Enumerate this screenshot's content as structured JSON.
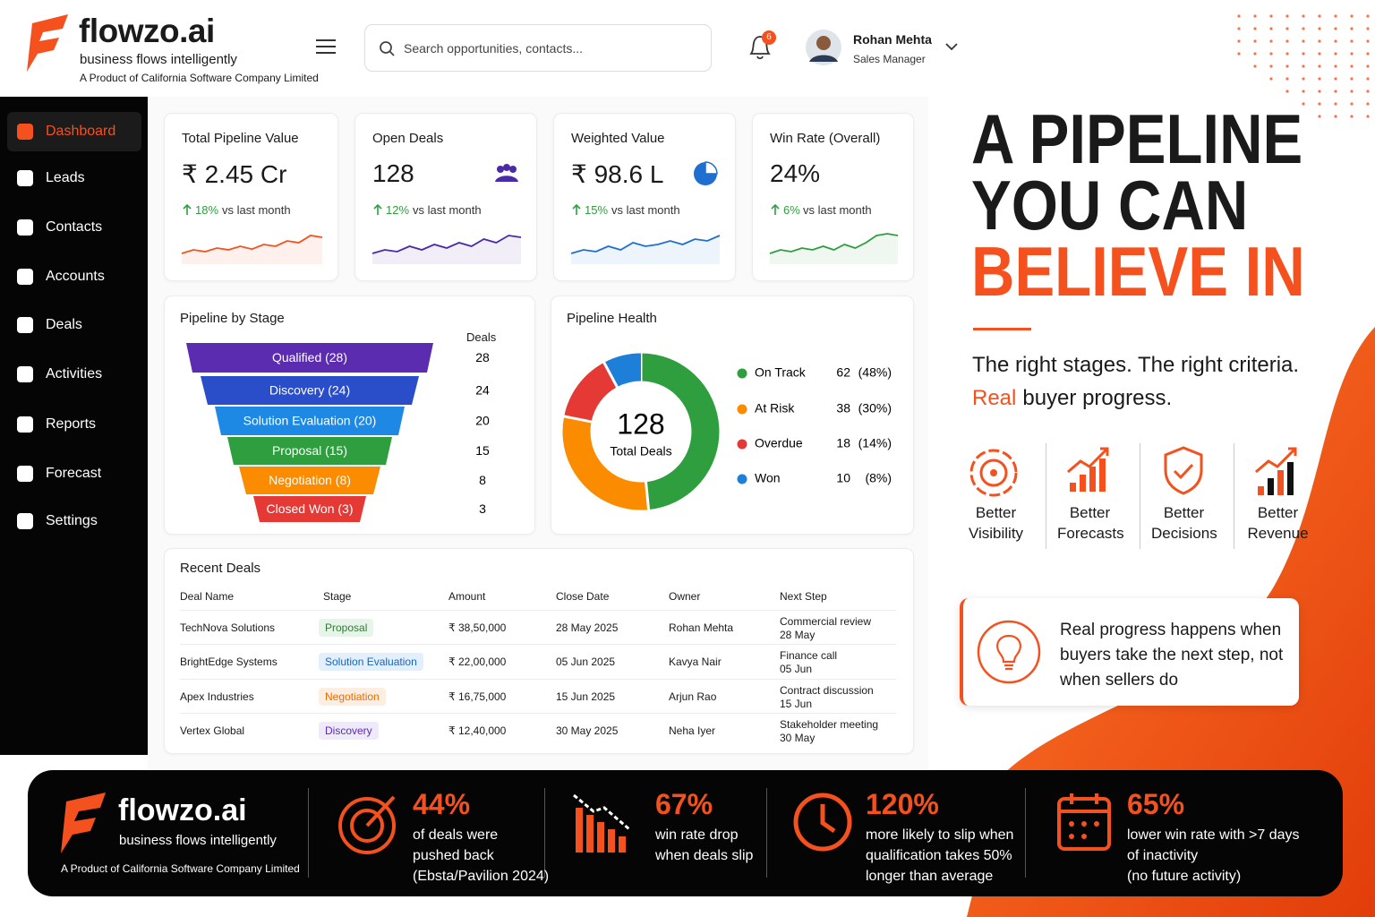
{
  "brand": {
    "name": "flowzo.ai",
    "tagline": "business flows intelligently",
    "company": "A Product of California Software Company Limited"
  },
  "search_placeholder": "Search opportunities, contacts...",
  "notifications": 6,
  "user": {
    "name": "Rohan Mehta",
    "role": "Sales Manager"
  },
  "nav": [
    "Dashboard",
    "Leads",
    "Contacts",
    "Accounts",
    "Deals",
    "Activities",
    "Reports",
    "Forecast",
    "Settings"
  ],
  "kpis": [
    {
      "title": "Total Pipeline Value",
      "value": "₹ 2.45 Cr",
      "change": "18%",
      "change_note": "vs last month",
      "color": "#f4511e",
      "trend": [
        3,
        4,
        3.5,
        4.5,
        4,
        5,
        4.2,
        5.5,
        5,
        6.5,
        6,
        8,
        7.5
      ]
    },
    {
      "title": "Open Deals",
      "value": "128",
      "change": "12%",
      "change_note": "vs last month",
      "color": "#4a2aa8",
      "trend": [
        3,
        4,
        3.5,
        5,
        4,
        5.5,
        4.5,
        6,
        5,
        7,
        6,
        8,
        7.5
      ]
    },
    {
      "title": "Weighted Value",
      "value": "₹ 98.6 L",
      "change": "15%",
      "change_note": "vs last month",
      "color": "#1e6fd0",
      "trend": [
        3,
        4,
        3.5,
        5,
        4,
        6,
        5,
        5.5,
        6.5,
        5.5,
        7,
        6.5,
        8
      ]
    },
    {
      "title": "Win Rate (Overall)",
      "value": "24%",
      "change": "6%",
      "change_note": "vs last month",
      "color": "#2e9e3f",
      "trend": [
        3,
        4,
        3.5,
        4.5,
        4,
        5,
        4,
        5.5,
        4.5,
        6,
        8,
        8.5,
        8
      ]
    }
  ],
  "pipeline_stage": {
    "title": "Pipeline by Stage",
    "deals_header": "Deals",
    "stages": [
      {
        "label": "Qualified (28)",
        "deals": 28,
        "color": "#5b2bb0"
      },
      {
        "label": "Discovery (24)",
        "deals": 24,
        "color": "#2a4ec9"
      },
      {
        "label": "Solution Evaluation (20)",
        "deals": 20,
        "color": "#1e88e5"
      },
      {
        "label": "Proposal (15)",
        "deals": 15,
        "color": "#2e9e3f"
      },
      {
        "label": "Negotiation (8)",
        "deals": 8,
        "color": "#fb8c00"
      },
      {
        "label": "Closed Won (3)",
        "deals": 3,
        "color": "#e53935"
      }
    ]
  },
  "pipeline_health": {
    "type": "donut",
    "title": "Pipeline Health",
    "total": 128,
    "total_label": "Total Deals",
    "segments": [
      {
        "name": "On Track",
        "value": 62,
        "pct": "(48%)",
        "color": "#2e9e3f"
      },
      {
        "name": "At Risk",
        "value": 38,
        "pct": "(30%)",
        "color": "#fb8c00"
      },
      {
        "name": "Overdue",
        "value": 18,
        "pct": "(14%)",
        "color": "#e53935"
      },
      {
        "name": "Won",
        "value": 10,
        "pct": "(8%)",
        "color": "#1e7fd8"
      }
    ]
  },
  "recent_deals": {
    "title": "Recent Deals",
    "columns": [
      "Deal Name",
      "Stage",
      "Amount",
      "Close Date",
      "Owner",
      "Next Step"
    ],
    "rows": [
      {
        "deal": "TechNova Solutions",
        "stage": "Proposal",
        "stage_color": "#2e7d32",
        "stage_bg": "#e6f4ea",
        "amount": "₹  38,50,000",
        "close_date": "28 May 2025",
        "owner": "Rohan Mehta",
        "next_step": "Commercial review",
        "next_date": "28 May"
      },
      {
        "deal": "BrightEdge Systems",
        "stage": "Solution Evaluation",
        "stage_color": "#1565c0",
        "stage_bg": "#e3f0fc",
        "amount": "₹  22,00,000",
        "close_date": "05 Jun 2025",
        "owner": "Kavya Nair",
        "next_step": "Finance call",
        "next_date": "05 Jun"
      },
      {
        "deal": "Apex Industries",
        "stage": "Negotiation",
        "stage_color": "#ef6c00",
        "stage_bg": "#fdeee2",
        "amount": "₹  16,75,000",
        "close_date": "15 Jun 2025",
        "owner": "Arjun Rao",
        "next_step": "Contract discussion",
        "next_date": "15 Jun"
      },
      {
        "deal": "Vertex Global",
        "stage": "Discovery",
        "stage_color": "#5b2bb0",
        "stage_bg": "#eeeafa",
        "amount": "₹  12,40,000",
        "close_date": "30 May 2025",
        "owner": "Neha Iyer",
        "next_step": "Stakeholder meeting",
        "next_date": "30 May"
      }
    ]
  },
  "hero": {
    "line1": "A PIPELINE",
    "line2": "YOU CAN",
    "line3": "BELIEVE IN",
    "sub1": "The right stages. The right criteria.",
    "sub2_highlight": "Real",
    "sub2_rest": "buyer progress."
  },
  "benefits": [
    "Better Visibility",
    "Better Forecasts",
    "Better Decisions",
    "Better Revenue"
  ],
  "quote": "Real progress happens when buyers take the next step, not when sellers do",
  "stats": [
    {
      "value": "44%",
      "lines": [
        "of deals were",
        "pushed back",
        "(Ebsta/Pavilion 2024)"
      ]
    },
    {
      "value": "67%",
      "lines": [
        "win rate drop",
        "when deals slip"
      ]
    },
    {
      "value": "120%",
      "lines": [
        "more likely to slip when",
        "qualification takes 50%",
        "longer than average"
      ]
    },
    {
      "value": "65%",
      "lines": [
        "lower win rate with >7 days",
        "of inactivity",
        "(no future activity)"
      ]
    }
  ]
}
